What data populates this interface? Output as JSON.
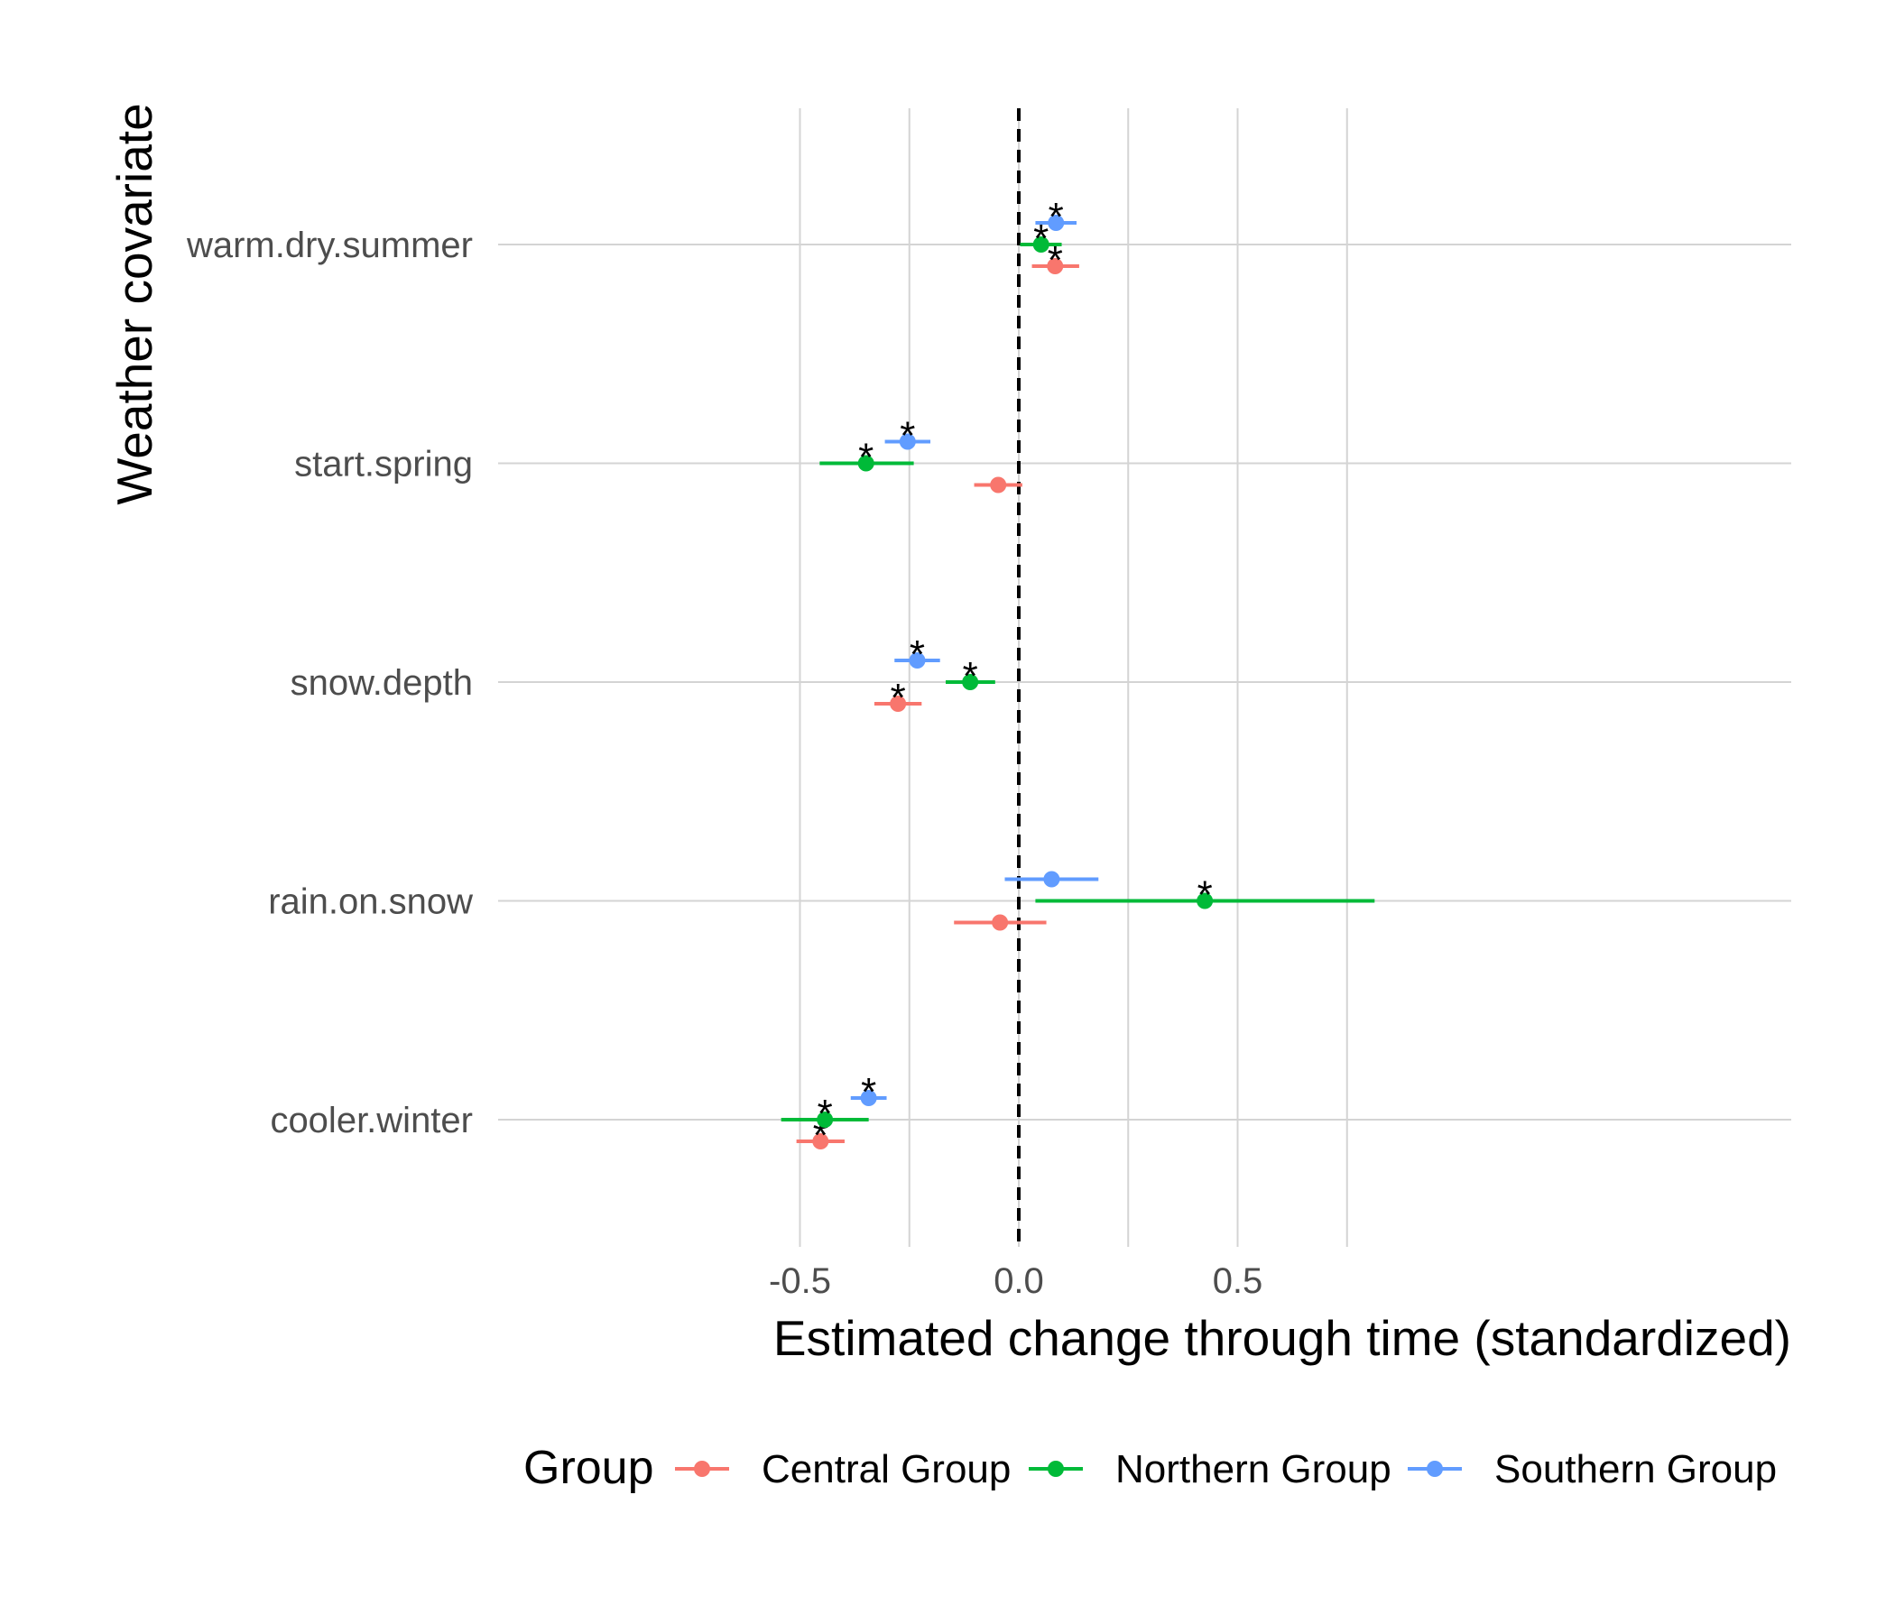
{
  "chart_data": {
    "type": "scatter",
    "xlabel": "Estimated change through time (standardized)",
    "ylabel": "Weather covariate",
    "xlim": [
      -0.6,
      0.885
    ],
    "x_ticks": [
      -0.5,
      0.0,
      0.5
    ],
    "x_tick_labels": [
      "-0.5",
      "0.0",
      "0.5"
    ],
    "reference_line": 0,
    "categories": [
      "warm.dry.summer",
      "start.spring",
      "snow.depth",
      "rain.on.snow",
      "cooler.winter"
    ],
    "grid": true,
    "significance_marker": "*",
    "legend": {
      "title": "Group",
      "position": "bottom"
    },
    "series": [
      {
        "name": "Central Group",
        "color": "#F8766D",
        "points": [
          {
            "category": "warm.dry.summer",
            "estimate": 0.083,
            "low": 0.03,
            "high": 0.138,
            "significant": true
          },
          {
            "category": "start.spring",
            "estimate": -0.047,
            "low": -0.102,
            "high": 0.008,
            "significant": false
          },
          {
            "category": "snow.depth",
            "estimate": -0.276,
            "low": -0.33,
            "high": -0.222,
            "significant": true
          },
          {
            "category": "rain.on.snow",
            "estimate": -0.043,
            "low": -0.148,
            "high": 0.063,
            "significant": false
          },
          {
            "category": "cooler.winter",
            "estimate": -0.453,
            "low": -0.508,
            "high": -0.398,
            "significant": true
          }
        ]
      },
      {
        "name": "Northern Group",
        "color": "#00BA38",
        "points": [
          {
            "category": "warm.dry.summer",
            "estimate": 0.051,
            "low": 0.003,
            "high": 0.098,
            "significant": true
          },
          {
            "category": "start.spring",
            "estimate": -0.349,
            "low": -0.455,
            "high": -0.24,
            "significant": true
          },
          {
            "category": "snow.depth",
            "estimate": -0.111,
            "low": -0.167,
            "high": -0.054,
            "significant": true
          },
          {
            "category": "rain.on.snow",
            "estimate": 0.425,
            "low": 0.038,
            "high": 0.813,
            "significant": true
          },
          {
            "category": "cooler.winter",
            "estimate": -0.443,
            "low": -0.543,
            "high": -0.343,
            "significant": true
          }
        ]
      },
      {
        "name": "Southern Group",
        "color": "#619CFF",
        "points": [
          {
            "category": "warm.dry.summer",
            "estimate": 0.085,
            "low": 0.038,
            "high": 0.132,
            "significant": true
          },
          {
            "category": "start.spring",
            "estimate": -0.254,
            "low": -0.306,
            "high": -0.202,
            "significant": true
          },
          {
            "category": "snow.depth",
            "estimate": -0.232,
            "low": -0.284,
            "high": -0.18,
            "significant": true
          },
          {
            "category": "rain.on.snow",
            "estimate": 0.075,
            "low": -0.032,
            "high": 0.182,
            "significant": false
          },
          {
            "category": "cooler.winter",
            "estimate": -0.343,
            "low": -0.384,
            "high": -0.302,
            "significant": true
          }
        ]
      }
    ]
  }
}
